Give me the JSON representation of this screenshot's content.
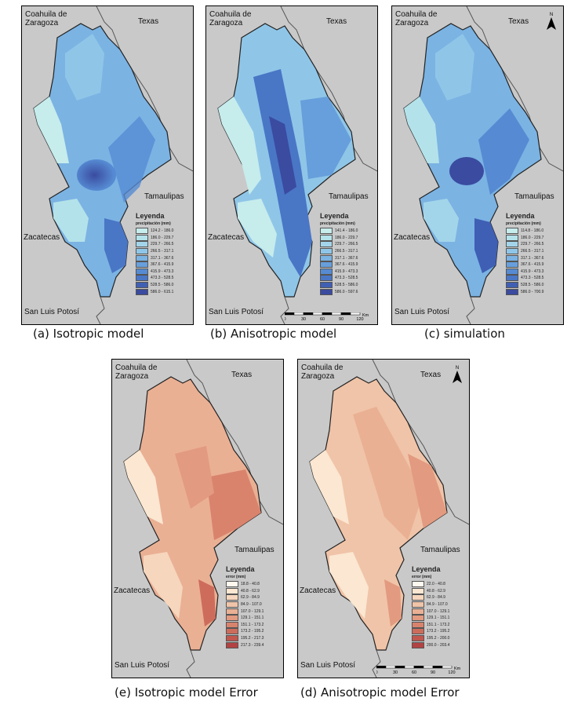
{
  "labels": {
    "coahuila": "Coahuila de\nZaragoza",
    "texas": "Texas",
    "tamaulipas": "Tamaulipas",
    "zacatecas": "Zacatecas",
    "slp": "San Luis Potosí"
  },
  "north_label": "N",
  "scale_bar": {
    "ticks": [
      "0",
      "30",
      "60",
      "90",
      "120"
    ],
    "unit": "Km"
  },
  "panels": [
    {
      "caption": "(a) Isotropic model",
      "legend": {
        "title": "Leyenda",
        "unit": "precipitación (mm)",
        "items": [
          "124.2 - 186.0",
          "186.0 - 229.7",
          "229.7 - 266.5",
          "266.5 - 317.1",
          "317.1 - 367.6",
          "367.6 - 415.9",
          "415.9 - 473.3",
          "473.3 - 528.5",
          "528.5 - 586.0",
          "586.0 - 615.1"
        ]
      }
    },
    {
      "caption": "(b) Anisotropic model",
      "legend": {
        "title": "Leyenda",
        "unit": "precipitación (mm)",
        "items": [
          "141.4 - 186.0",
          "186.0 - 229.7",
          "229.7 - 266.5",
          "266.5 - 317.1",
          "317.1 - 367.6",
          "367.6 - 415.9",
          "415.9 - 473.3",
          "473.3 - 528.5",
          "528.5 - 586.0",
          "586.0 - 597.6"
        ]
      }
    },
    {
      "caption": "(c) simulation",
      "legend": {
        "title": "Leyenda",
        "unit": "precipitación (mm)",
        "items": [
          "114.8 - 186.0",
          "186.0 - 229.7",
          "229.7 - 266.5",
          "266.5 - 317.1",
          "317.1 - 367.6",
          "367.6 - 415.9",
          "415.9 - 473.3",
          "473.3 - 528.5",
          "528.5 - 586.0",
          "586.0 - 700.9"
        ]
      }
    },
    {
      "caption": "(e) Isotropic model Error",
      "legend": {
        "title": "Leyenda",
        "unit": "error (mm)",
        "items": [
          "18.8 - 40.8",
          "40.8 - 62.9",
          "62.9 - 84.9",
          "84.9 - 107.0",
          "107.0 - 129.1",
          "129.1 - 151.1",
          "151.1 - 173.2",
          "173.2 - 195.2",
          "195.2 - 217.3",
          "217.3 - 239.4"
        ]
      }
    },
    {
      "caption": "(d) Anisotropic model Error",
      "legend": {
        "title": "Leyenda",
        "unit": "error (mm)",
        "items": [
          "22.0 - 40.8",
          "40.8 - 62.9",
          "62.9 - 84.9",
          "84.9 - 107.0",
          "107.0 - 129.1",
          "129.1 - 151.1",
          "151.1 - 173.2",
          "173.2 - 195.2",
          "195.2 - 200.0",
          "200.0 - 203.4"
        ]
      }
    }
  ],
  "colors": {
    "blue_ramp": [
      "#c6ecec",
      "#b4e2ea",
      "#a3d5ea",
      "#8fc6e8",
      "#7bb3e3",
      "#679fdc",
      "#568bd3",
      "#4a76c6",
      "#3f5fb4",
      "#3a4ba0"
    ],
    "red_ramp": [
      "#fff8ee",
      "#fbe7d2",
      "#f6d6bd",
      "#f0c4a8",
      "#eab094",
      "#e29a80",
      "#d9836d",
      "#ce6c5c",
      "#c2574e",
      "#b34343"
    ],
    "background": "#c9c9c9"
  }
}
